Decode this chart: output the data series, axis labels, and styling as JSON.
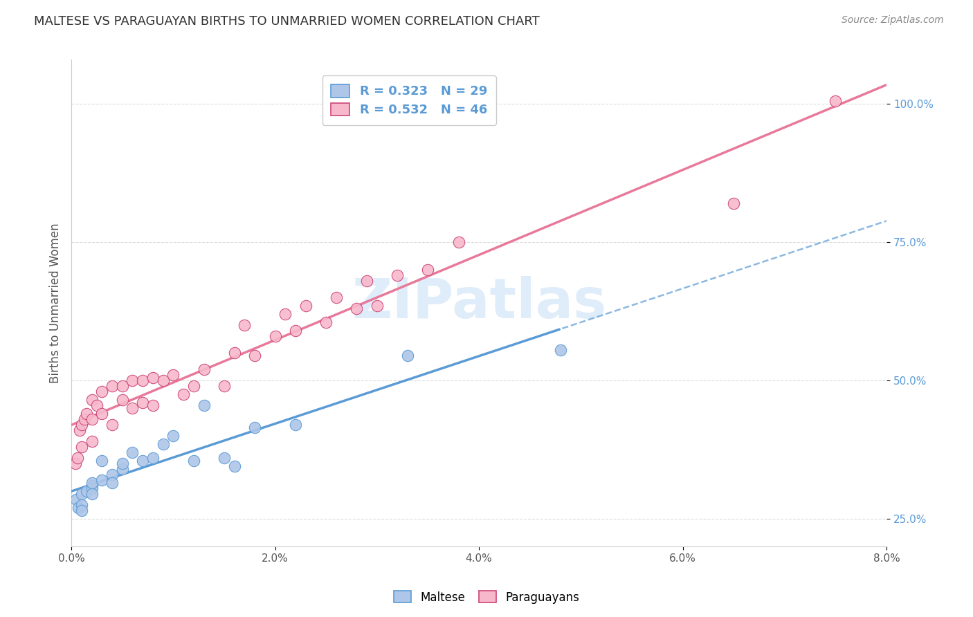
{
  "title": "MALTESE VS PARAGUAYAN BIRTHS TO UNMARRIED WOMEN CORRELATION CHART",
  "source": "Source: ZipAtlas.com",
  "ylabel": "Births to Unmarried Women",
  "maltese_color": "#aec6e8",
  "paraguayan_color": "#f7b8cb",
  "maltese_line_color": "#5b9bd5",
  "paraguayan_line_color": "#e8799a",
  "maltese_edge_color": "#4a7fb5",
  "paraguayan_edge_color": "#cc4477",
  "watermark_color": "#c5ddf5",
  "grid_color": "#d8d8d8",
  "maltese_x": [
    0.0005,
    0.0007,
    0.001,
    0.001,
    0.001,
    0.0015,
    0.002,
    0.002,
    0.002,
    0.002,
    0.003,
    0.003,
    0.004,
    0.004,
    0.005,
    0.005,
    0.006,
    0.007,
    0.008,
    0.009,
    0.01,
    0.012,
    0.013,
    0.015,
    0.016,
    0.018,
    0.022,
    0.033,
    0.048
  ],
  "maltese_y": [
    0.285,
    0.27,
    0.295,
    0.275,
    0.265,
    0.3,
    0.31,
    0.305,
    0.295,
    0.315,
    0.32,
    0.355,
    0.33,
    0.315,
    0.34,
    0.35,
    0.37,
    0.355,
    0.36,
    0.385,
    0.4,
    0.355,
    0.455,
    0.36,
    0.345,
    0.415,
    0.42,
    0.545,
    0.555
  ],
  "paraguayan_x": [
    0.0004,
    0.0006,
    0.0008,
    0.001,
    0.001,
    0.0013,
    0.0015,
    0.002,
    0.002,
    0.002,
    0.0025,
    0.003,
    0.003,
    0.004,
    0.004,
    0.005,
    0.005,
    0.006,
    0.006,
    0.007,
    0.007,
    0.008,
    0.008,
    0.009,
    0.01,
    0.011,
    0.012,
    0.013,
    0.015,
    0.016,
    0.017,
    0.018,
    0.02,
    0.021,
    0.022,
    0.023,
    0.025,
    0.026,
    0.028,
    0.029,
    0.03,
    0.032,
    0.035,
    0.038,
    0.065,
    0.075
  ],
  "paraguayan_y": [
    0.35,
    0.36,
    0.41,
    0.42,
    0.38,
    0.43,
    0.44,
    0.465,
    0.43,
    0.39,
    0.455,
    0.48,
    0.44,
    0.49,
    0.42,
    0.465,
    0.49,
    0.5,
    0.45,
    0.5,
    0.46,
    0.505,
    0.455,
    0.5,
    0.51,
    0.475,
    0.49,
    0.52,
    0.49,
    0.55,
    0.6,
    0.545,
    0.58,
    0.62,
    0.59,
    0.635,
    0.605,
    0.65,
    0.63,
    0.68,
    0.635,
    0.69,
    0.7,
    0.75,
    0.82,
    1.005
  ],
  "xlim": [
    0.0,
    0.08
  ],
  "ylim": [
    0.2,
    1.08
  ],
  "xticks": [
    0.0,
    0.02,
    0.04,
    0.06,
    0.08
  ],
  "xticklabels": [
    "0.0%",
    "2.0%",
    "4.0%",
    "6.0%",
    "8.0%"
  ],
  "yticks": [
    0.25,
    0.5,
    0.75,
    1.0
  ],
  "yticklabels": [
    "25.0%",
    "50.0%",
    "75.0%",
    "100.0%"
  ],
  "maltese_r": "0.323",
  "maltese_n": "29",
  "paraguayan_r": "0.532",
  "paraguayan_n": "46"
}
